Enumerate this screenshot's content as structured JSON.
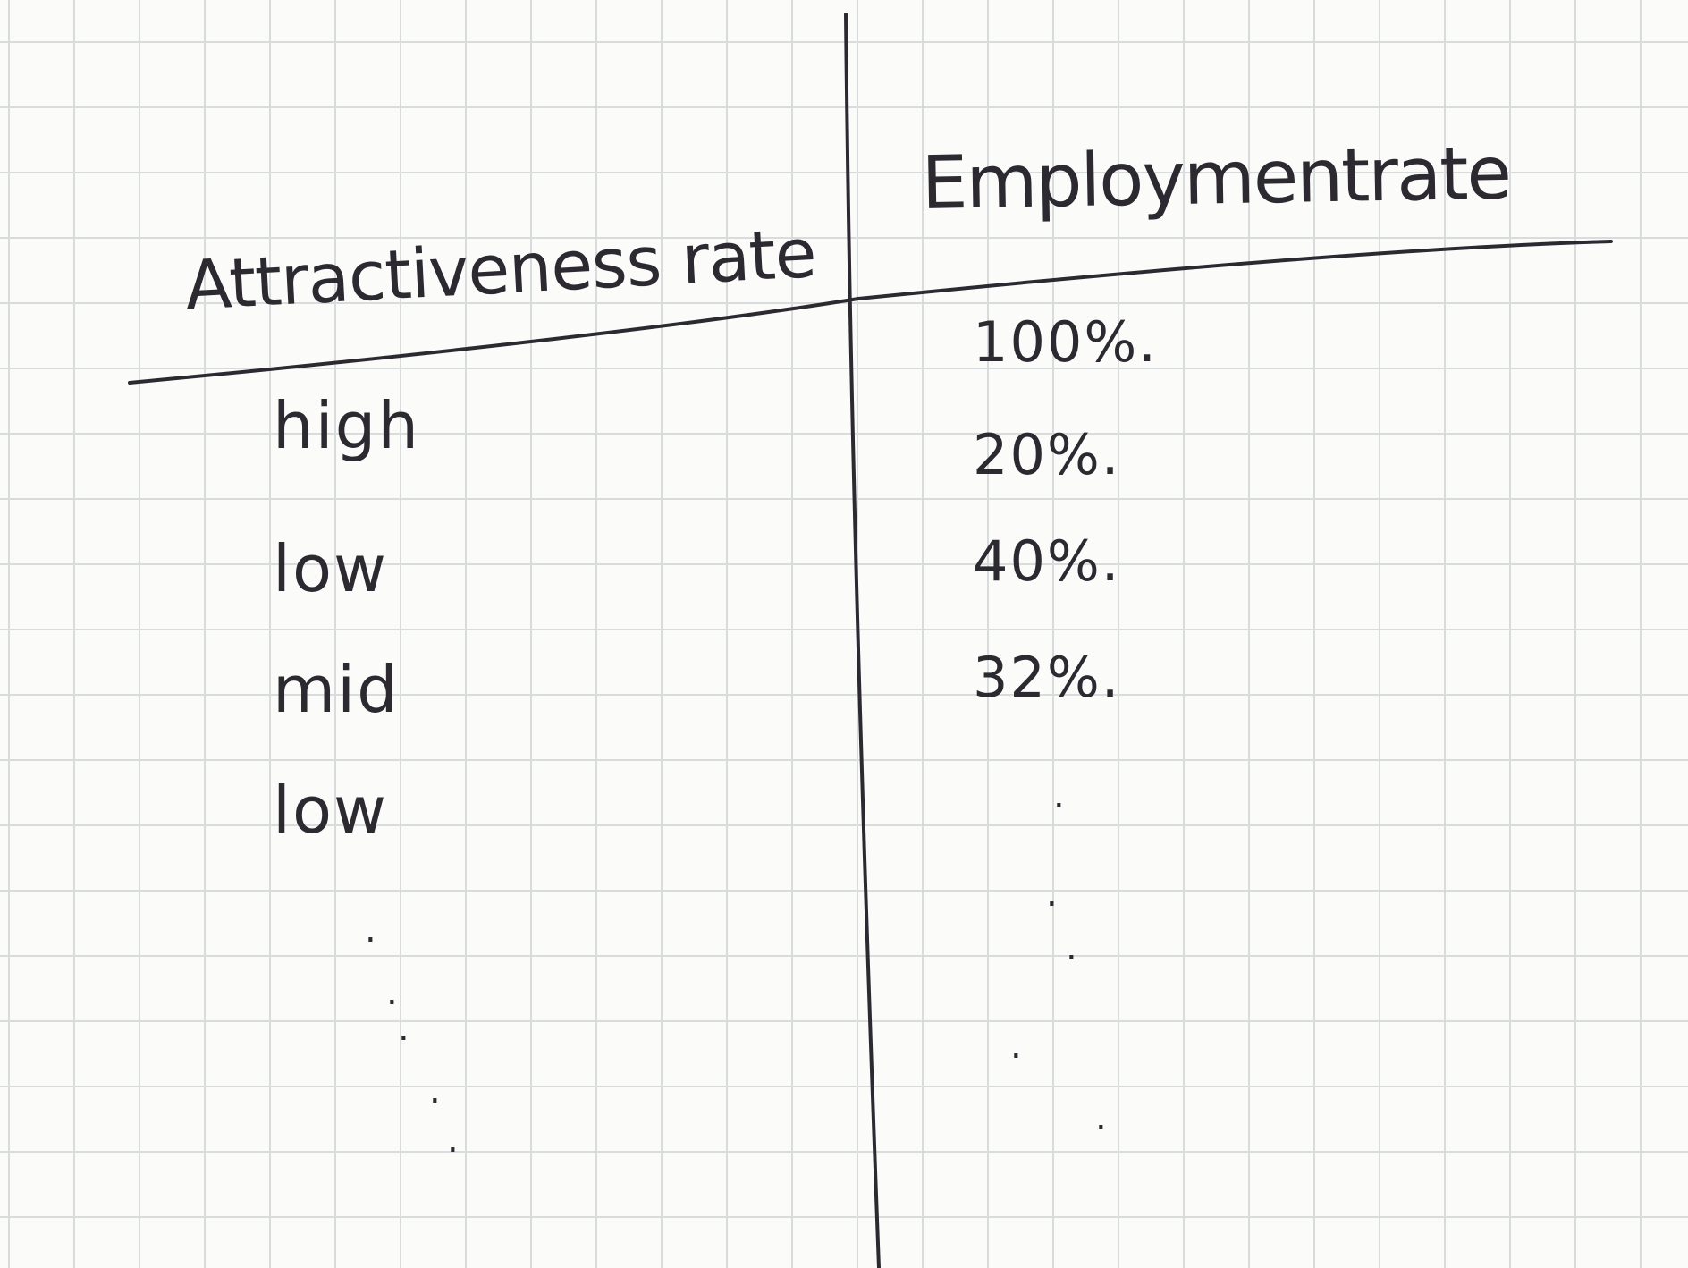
{
  "table": {
    "headers": {
      "left": "Attractiveness rate",
      "right": "Employmentrate"
    },
    "rows": [
      {
        "attractiveness": "high",
        "employment": "100%."
      },
      {
        "attractiveness": "low",
        "employment": "20%."
      },
      {
        "attractiveness": "mid",
        "employment": "40%."
      },
      {
        "attractiveness": "low",
        "employment": "32%."
      }
    ],
    "continuation_marks": "."
  },
  "ink_color": "#2c2a30",
  "grid_color": "#d9dcdc"
}
